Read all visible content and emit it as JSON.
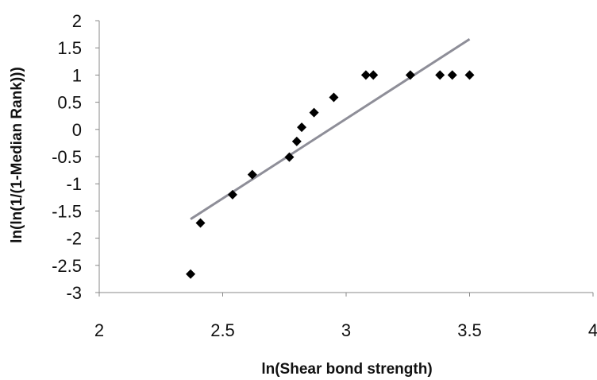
{
  "chart_data": {
    "type": "scatter",
    "xlabel": "ln(Shear bond strength)",
    "ylabel": "ln(ln(1/(1-Median Rank)))",
    "xlim": [
      2,
      4
    ],
    "ylim": [
      -3,
      2
    ],
    "x_ticks": [
      "2",
      "2.5",
      "3",
      "3.5",
      "4"
    ],
    "y_ticks": [
      "2",
      "1.5",
      "1",
      "0.5",
      "0",
      "-0.5",
      "-1",
      "-1.5",
      "-2",
      "-2.5",
      "-3"
    ],
    "grid": false,
    "legend": "none",
    "marker": "diamond",
    "marker_color": "#000000",
    "trendline_color": "#8e8e98",
    "series": [
      {
        "points": [
          {
            "x": 2.37,
            "y": -2.66
          },
          {
            "x": 2.41,
            "y": -1.72
          },
          {
            "x": 2.54,
            "y": -1.2
          },
          {
            "x": 2.62,
            "y": -0.83
          },
          {
            "x": 2.77,
            "y": -0.51
          },
          {
            "x": 2.8,
            "y": -0.22
          },
          {
            "x": 2.82,
            "y": 0.04
          },
          {
            "x": 2.87,
            "y": 0.31
          },
          {
            "x": 2.95,
            "y": 0.59
          },
          {
            "x": 3.08,
            "y": 1.0
          },
          {
            "x": 3.11,
            "y": 1.0
          },
          {
            "x": 3.26,
            "y": 1.0
          },
          {
            "x": 3.38,
            "y": 1.0
          },
          {
            "x": 3.43,
            "y": 1.0
          },
          {
            "x": 3.5,
            "y": 1.0
          }
        ]
      }
    ],
    "trendline": {
      "x": [
        2.37,
        3.5
      ],
      "y": [
        -1.65,
        1.66
      ]
    }
  }
}
